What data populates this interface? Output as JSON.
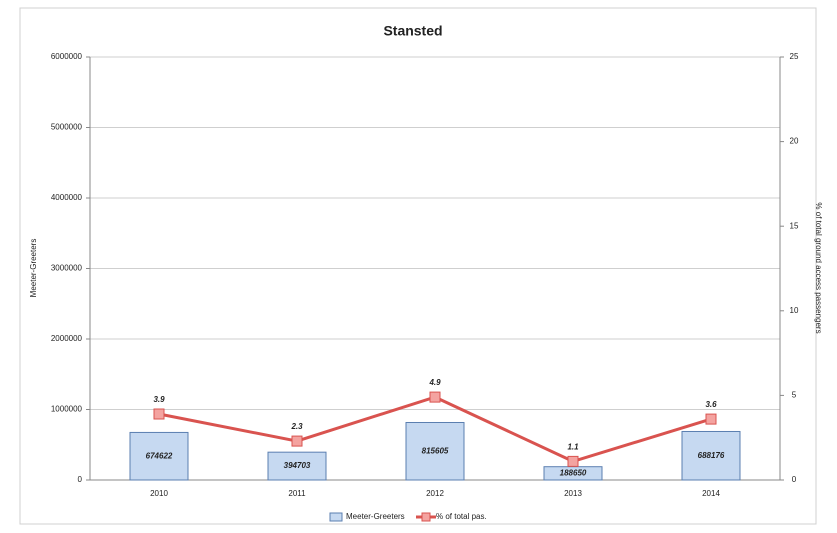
{
  "chart_data": {
    "type": "bar_line",
    "title": "Stansted",
    "ylabel": "Meeter-Greeters",
    "y2label": "% of total ground access passengers",
    "categories": [
      "2010",
      "2011",
      "2012",
      "2013",
      "2014"
    ],
    "series": [
      {
        "name": "Meeter-Greeters",
        "type": "bar",
        "color": "#c6d9f1",
        "values": [
          674622,
          394703,
          815605,
          188650,
          688176
        ]
      },
      {
        "name": "% of total pas.",
        "type": "line",
        "axis": "y2",
        "color": "#d9534f",
        "values": [
          3.9,
          2.3,
          4.9,
          1.1,
          3.6
        ]
      }
    ],
    "ylim": [
      0,
      6000000
    ],
    "yticks": [
      0,
      1000000,
      2000000,
      3000000,
      4000000,
      5000000,
      6000000
    ],
    "y2lim": [
      0,
      25
    ],
    "y2ticks": [
      0,
      5,
      10,
      15,
      20,
      25
    ],
    "grid": true,
    "legend": "bottom"
  }
}
